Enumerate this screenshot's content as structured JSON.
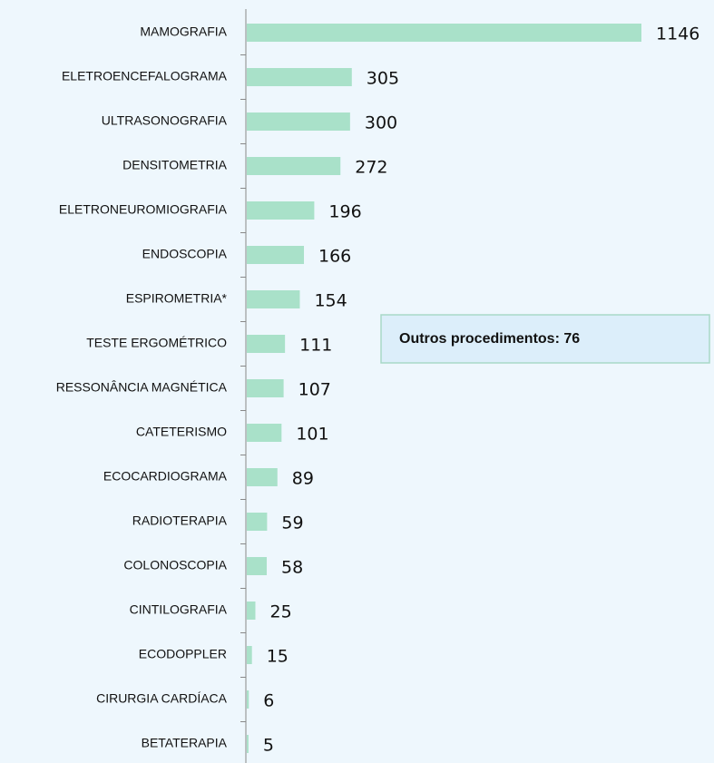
{
  "chart_data": {
    "type": "barh",
    "categories": [
      "MAMOGRAFIA",
      "ELETROENCEFALOGRAMA",
      "ULTRASONOGRAFIA",
      "DENSITOMETRIA",
      "ELETRONEUROMIOGRAFIA",
      "ENDOSCOPIA",
      "ESPIROMETRIA*",
      "TESTE ERGOMÉTRICO",
      "RESSONÂNCIA MAGNÉTICA",
      "CATETERISMO",
      "ECOCARDIOGRAMA",
      "RADIOTERAPIA",
      "COLONOSCOPIA",
      "CINTILOGRAFIA",
      "ECODOPPLER",
      "CIRURGIA CARDÍACA",
      "BETATERAPIA"
    ],
    "values": [
      1146,
      305,
      300,
      272,
      196,
      166,
      154,
      111,
      107,
      101,
      89,
      59,
      58,
      25,
      15,
      6,
      5
    ],
    "color": "#a9e1c9",
    "annotation": "Outros procedimentos: 76"
  }
}
